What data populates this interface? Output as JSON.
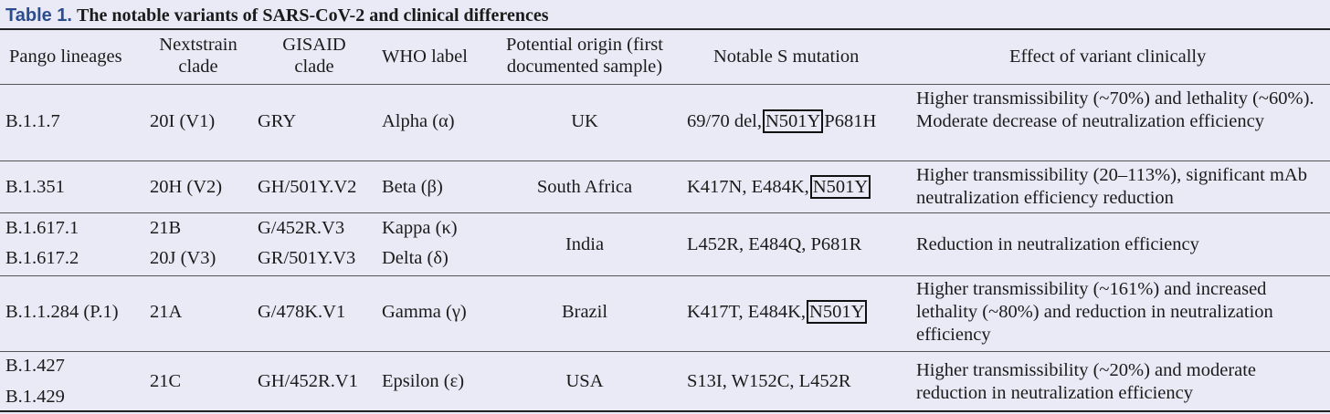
{
  "caption": {
    "label": "Table 1.",
    "title": "The notable variants of SARS-CoV-2 and clinical differences"
  },
  "headers": {
    "pango": "Pango lineages",
    "nextstrain_1": "Nextstrain",
    "nextstrain_2": "clade",
    "gisaid_1": "GISAID",
    "gisaid_2": "clade",
    "who": "WHO label",
    "origin_1": "Potential origin (first",
    "origin_2": "documented sample)",
    "mutation": "Notable S mutation",
    "effect": "Effect of variant clinically"
  },
  "rows": [
    {
      "pango": "B.1.1.7",
      "nextstrain": "20I (V1)",
      "gisaid": "GRY",
      "who": "Alpha (α)",
      "origin": "UK",
      "mut_a": "69/70 del,",
      "mut_b": "N501Y",
      "mut_c": "P681H",
      "effect": "Higher transmissibility (~70%) and lethality (~60%). Moderate decrease of neutralization efficiency"
    },
    {
      "pango": "B.1.351",
      "nextstrain": "20H (V2)",
      "gisaid": "GH/501Y.V2",
      "who": "Beta (β)",
      "origin": "South Africa",
      "mut_a": "K417N, E484K,",
      "mut_b": "N501Y",
      "effect": "Higher transmissibility (20–113%), significant mAb neutralization efficiency reduction"
    },
    {
      "pango_1": "B.1.617.1",
      "pango_2": "B.1.617.2",
      "nextstrain_1": "21B",
      "nextstrain_2": "20J (V3)",
      "gisaid_1": "G/452R.V3",
      "gisaid_2": "GR/501Y.V3",
      "who_1": "Kappa (κ)",
      "who_2": "Delta (δ)",
      "origin": "India",
      "mut_a": "L452R, E484Q, P681R",
      "effect": "Reduction in neutralization efficiency"
    },
    {
      "pango": "B.1.1.284 (P.1)",
      "nextstrain": "21A",
      "gisaid": "G/478K.V1",
      "who": "Gamma (γ)",
      "origin": "Brazil",
      "mut_a": "K417T, E484K,",
      "mut_b": "N501Y",
      "effect": "Higher transmissibility (~161%) and increased lethality (~80%) and reduction in neutralization efficiency"
    },
    {
      "pango_1": "B.1.427",
      "pango_2": "B.1.429",
      "nextstrain": "21C",
      "gisaid": "GH/452R.V1",
      "who": "Epsilon (ε)",
      "origin": "USA",
      "mut_a": "S13I, W152C, L452R",
      "effect": "Higher transmissibility (~20%) and moderate reduction in neutralization efficiency"
    }
  ]
}
